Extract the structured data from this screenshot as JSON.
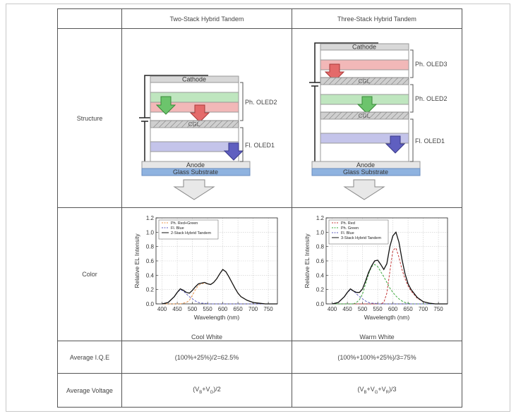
{
  "header": {
    "col_two": "Two-Stack Hybrid Tandem",
    "col_three": "Three-Stack Hybrid Tandem"
  },
  "rows": {
    "structure": "Structure",
    "color": "Color",
    "iqe": "Average I.Q.E",
    "voltage": "Average Voltage"
  },
  "two_stack": {
    "layers": {
      "cathode": "Cathode",
      "cgl": "CGL",
      "anode": "Anode",
      "substrate": "Glass Substrate"
    },
    "units": [
      "Ph. OLED2",
      "Fl. OLED1"
    ],
    "white_label": "Cool White",
    "iqe_formula": "(100%+25%)/2=62.5%",
    "voltage": {
      "open": "(V",
      "b": "B",
      "plus": "+V",
      "g": "G",
      "close": ")/2"
    }
  },
  "three_stack": {
    "layers": {
      "cathode": "Cathode",
      "cgl": "CGL",
      "anode": "Anode",
      "substrate": "Glass Substrate"
    },
    "units": [
      "Ph. OLED3",
      "Ph. OLED2",
      "Fl. OLED1"
    ],
    "white_label": "Warm White",
    "iqe_formula": "(100%+100%+25%)/3=75%",
    "voltage": {
      "open": "(V",
      "b": "B",
      "plus1": "+V",
      "g": "G",
      "plus2": "+V",
      "r": "R",
      "close": ")/3"
    }
  },
  "colors": {
    "red": "#e46a6a",
    "green": "#6cc46c",
    "blue": "#5f5fc0",
    "orange": "#e8944a",
    "substrate": "#8fb3e0"
  },
  "chart_data": [
    {
      "type": "line",
      "xlabel": "Wavelength (nm)",
      "ylabel": "Relative EL Intensity",
      "xlim": [
        380,
        780
      ],
      "ylim": [
        0,
        1.2
      ],
      "xticks": [
        400,
        450,
        500,
        550,
        600,
        650,
        700,
        750
      ],
      "yticks": [
        0.0,
        0.2,
        0.4,
        0.6,
        0.8,
        1.0,
        1.2
      ],
      "grid": true,
      "legend_position": "top-left",
      "x": [
        400,
        420,
        440,
        450,
        460,
        470,
        480,
        490,
        500,
        510,
        520,
        530,
        540,
        550,
        560,
        570,
        580,
        590,
        600,
        610,
        620,
        630,
        640,
        650,
        660,
        680,
        700,
        720,
        740,
        760,
        780
      ],
      "series": [
        {
          "name": "Ph. Red+Green",
          "style": "dashed",
          "color": "#e8944a",
          "values": [
            0,
            0,
            0,
            0,
            0,
            0.01,
            0.02,
            0.05,
            0.12,
            0.2,
            0.26,
            0.28,
            0.29,
            0.28,
            0.27,
            0.3,
            0.35,
            0.42,
            0.48,
            0.45,
            0.38,
            0.3,
            0.22,
            0.15,
            0.1,
            0.05,
            0.02,
            0.01,
            0,
            0,
            0
          ]
        },
        {
          "name": "Fl. Blue",
          "style": "dashed",
          "color": "#5f5fc0",
          "values": [
            0,
            0.02,
            0.1,
            0.16,
            0.2,
            0.18,
            0.14,
            0.1,
            0.07,
            0.04,
            0.02,
            0.01,
            0.01,
            0,
            0,
            0,
            0,
            0,
            0,
            0,
            0,
            0,
            0,
            0,
            0,
            0,
            0,
            0,
            0,
            0,
            0
          ]
        },
        {
          "name": "2-Stack Hybrid Tandem",
          "style": "solid",
          "color": "#111111",
          "values": [
            0,
            0.02,
            0.1,
            0.16,
            0.21,
            0.19,
            0.16,
            0.15,
            0.19,
            0.24,
            0.28,
            0.29,
            0.3,
            0.28,
            0.27,
            0.3,
            0.35,
            0.42,
            0.48,
            0.45,
            0.38,
            0.3,
            0.22,
            0.15,
            0.1,
            0.05,
            0.02,
            0.01,
            0,
            0,
            0
          ]
        }
      ]
    },
    {
      "type": "line",
      "xlabel": "Wavelength (nm)",
      "ylabel": "Relative EL Intensity",
      "xlim": [
        380,
        780
      ],
      "ylim": [
        0,
        1.2
      ],
      "xticks": [
        400,
        450,
        500,
        550,
        600,
        650,
        700,
        750
      ],
      "yticks": [
        0.0,
        0.2,
        0.4,
        0.6,
        0.8,
        1.0,
        1.2
      ],
      "grid": true,
      "legend_position": "top-left",
      "x": [
        400,
        420,
        440,
        450,
        460,
        470,
        480,
        490,
        500,
        510,
        520,
        530,
        540,
        550,
        560,
        570,
        580,
        590,
        600,
        610,
        620,
        630,
        640,
        650,
        660,
        680,
        700,
        720,
        740,
        760,
        780
      ],
      "series": [
        {
          "name": "Ph. Red",
          "style": "dashed",
          "color": "#c43a3a",
          "values": [
            0,
            0,
            0,
            0,
            0,
            0,
            0,
            0,
            0,
            0,
            0,
            0,
            0,
            0,
            0,
            0.02,
            0.15,
            0.45,
            0.75,
            0.78,
            0.65,
            0.48,
            0.35,
            0.25,
            0.18,
            0.08,
            0.03,
            0.01,
            0,
            0,
            0
          ]
        },
        {
          "name": "Ph. Green",
          "style": "dashed",
          "color": "#3aa83a",
          "values": [
            0,
            0,
            0,
            0,
            0,
            0,
            0.02,
            0.06,
            0.14,
            0.28,
            0.42,
            0.52,
            0.55,
            0.52,
            0.45,
            0.38,
            0.3,
            0.22,
            0.16,
            0.11,
            0.07,
            0.04,
            0.02,
            0.01,
            0,
            0,
            0,
            0,
            0,
            0,
            0
          ]
        },
        {
          "name": "Fl. Blue",
          "style": "dashed",
          "color": "#5f5fc0",
          "values": [
            0,
            0.02,
            0.1,
            0.16,
            0.2,
            0.18,
            0.14,
            0.1,
            0.07,
            0.04,
            0.02,
            0.01,
            0.01,
            0,
            0,
            0,
            0,
            0,
            0,
            0,
            0,
            0,
            0,
            0,
            0,
            0,
            0,
            0,
            0,
            0,
            0
          ]
        },
        {
          "name": "3-Stack Hybrid Tandem",
          "style": "solid",
          "color": "#111111",
          "values": [
            0,
            0.02,
            0.1,
            0.16,
            0.21,
            0.18,
            0.16,
            0.16,
            0.21,
            0.32,
            0.44,
            0.53,
            0.6,
            0.61,
            0.55,
            0.48,
            0.56,
            0.8,
            0.95,
            1.0,
            0.86,
            0.62,
            0.42,
            0.28,
            0.2,
            0.09,
            0.03,
            0.01,
            0,
            0,
            0
          ]
        }
      ]
    }
  ]
}
